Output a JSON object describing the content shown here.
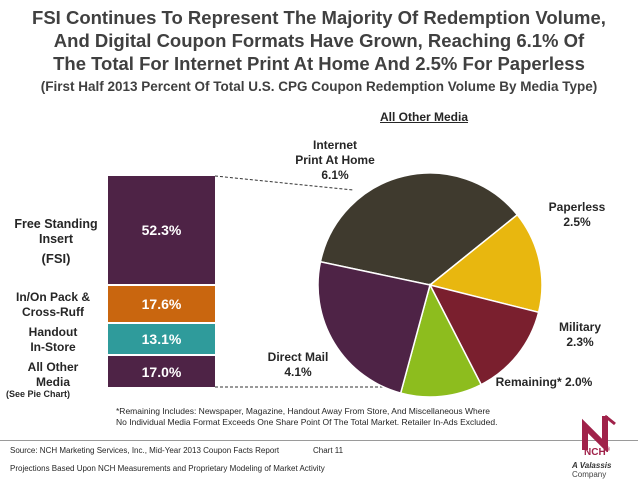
{
  "title": {
    "line1": "FSI Continues To Represent The Majority Of Redemption Volume,",
    "line2": "And Digital Coupon Formats Have Grown, Reaching 6.1% Of",
    "line3": "The Total For Internet Print At Home And 2.5% For Paperless"
  },
  "subtitle": "(First Half 2013 Percent Of Total U.S. CPG Coupon Redemption Volume By Media Type)",
  "chart_data": [
    {
      "type": "bar",
      "stacked": true,
      "categories": [
        "Free Standing Insert (FSI)",
        "In/On Pack & Cross-Ruff",
        "Handout In-Store",
        "All Other Media"
      ],
      "values": [
        52.3,
        17.6,
        13.1,
        17.0
      ],
      "value_labels": [
        "52.3%",
        "17.6%",
        "13.1%",
        "17.0%"
      ],
      "labels": {
        "fsi_line1": "Free Standing",
        "fsi_line2": "Insert",
        "fsi_line3": "(FSI)",
        "inon_line1": "In/On Pack &",
        "inon_line2": "Cross-Ruff",
        "handout_line1": "Handout",
        "handout_line2": "In-Store",
        "other_line1": "All Other",
        "other_line2": "Media",
        "other_note": "(See Pie Chart)"
      },
      "colors": [
        "#4e2346",
        "#c9660f",
        "#2f9b9b",
        "#4e2346"
      ]
    },
    {
      "type": "pie",
      "title": "All Other Media",
      "slices": [
        {
          "name": "Internet Print At Home",
          "value": 6.1,
          "label": "6.1%",
          "color": "#3f3a2e"
        },
        {
          "name": "Paperless",
          "value": 2.5,
          "label": "2.5%",
          "color": "#e8b70f"
        },
        {
          "name": "Military",
          "value": 2.3,
          "label": "2.3%",
          "color": "#7a1f2e"
        },
        {
          "name": "Remaining*",
          "value": 2.0,
          "label": "2.0%",
          "color": "#8dbd1e"
        },
        {
          "name": "Direct Mail",
          "value": 4.1,
          "label": "4.1%",
          "color": "#4e2346"
        }
      ],
      "slice_labels": {
        "internet_line1": "Internet",
        "internet_line2": "Print At Home",
        "internet_line3": "6.1%",
        "paperless_line1": "Paperless",
        "paperless_line2": "2.5%",
        "military_line1": "Military",
        "military_line2": "2.3%",
        "remaining": "Remaining* 2.0%",
        "direct_line1": "Direct Mail",
        "direct_line2": "4.1%"
      }
    }
  ],
  "footnote": {
    "line1": "*Remaining Includes: Newspaper, Magazine, Handout Away From Store, And Miscellaneous Where",
    "line2": "No Individual Media Format Exceeds One Share Point Of The Total Market. Retailer In-Ads Excluded."
  },
  "source": "Source: NCH Marketing Services, Inc., Mid-Year 2013 Coupon Facts Report",
  "chart_num": "Chart 11",
  "projections": "Projections Based Upon NCH Measurements and Proprietary Modeling of Market Activity",
  "logo": {
    "name": "NCH",
    "reg": "®",
    "tagline_brand": "A Valassis",
    "tagline_rest": " Company"
  }
}
